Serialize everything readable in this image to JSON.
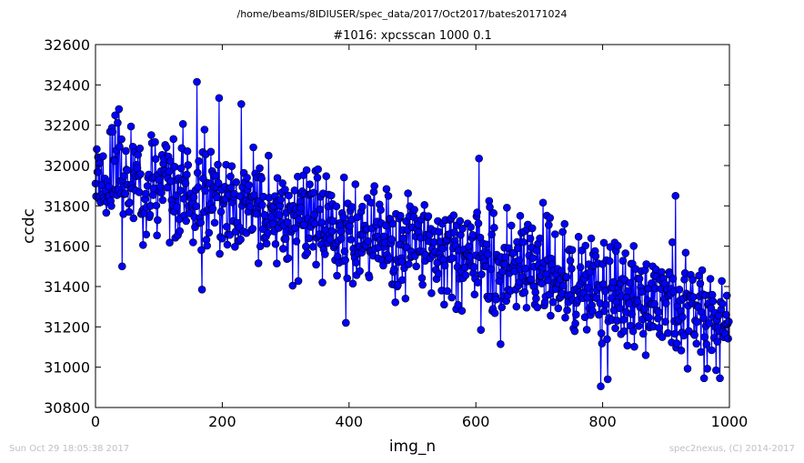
{
  "header": {
    "path": "/home/beams/8IDIUSER/spec_data/2017/Oct2017/bates20171024"
  },
  "footer": {
    "timestamp": "Sun Oct 29 18:05:38 2017",
    "credit": "spec2nexus, (C) 2014-2017"
  },
  "chart_data": {
    "type": "line",
    "title": "#1016: xpcsscan 1000 0.1",
    "xlabel": "img_n",
    "ylabel": "ccdc",
    "xlim": [
      0,
      1000
    ],
    "ylim": [
      30800,
      32600
    ],
    "xticks": [
      0,
      200,
      400,
      600,
      800,
      1000
    ],
    "yticks": [
      30800,
      31000,
      31200,
      31400,
      31600,
      31800,
      32000,
      32200,
      32400,
      32600
    ],
    "xtick_labels": [
      "0",
      "200",
      "400",
      "600",
      "800",
      "1000"
    ],
    "ytick_labels": [
      "30800",
      "31000",
      "31200",
      "31400",
      "31600",
      "31800",
      "32000",
      "32200",
      "32400",
      "32600"
    ],
    "grid": false,
    "legend": "none",
    "marker": "circle",
    "line_color": "#0000ff",
    "marker_color": "#0000ff",
    "series": [
      {
        "n_points": 1000,
        "x_start": 0,
        "x_step": 1,
        "trend_start": 31950,
        "trend_end": 31250,
        "noise_amplitude": 150,
        "notable_points": [
          {
            "x": 160,
            "y": 32415
          },
          {
            "x": 195,
            "y": 32335
          },
          {
            "x": 230,
            "y": 32305
          },
          {
            "x": 37,
            "y": 32280
          },
          {
            "x": 605,
            "y": 32035
          },
          {
            "x": 42,
            "y": 31500
          },
          {
            "x": 168,
            "y": 31385
          },
          {
            "x": 395,
            "y": 31220
          },
          {
            "x": 608,
            "y": 31185
          },
          {
            "x": 797,
            "y": 30905
          },
          {
            "x": 808,
            "y": 30940
          },
          {
            "x": 960,
            "y": 30945
          },
          {
            "x": 985,
            "y": 30945
          },
          {
            "x": 915,
            "y": 31850
          }
        ]
      }
    ]
  }
}
